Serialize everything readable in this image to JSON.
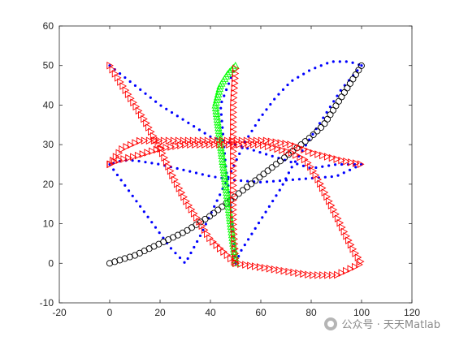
{
  "chart_data": {
    "type": "scatter",
    "title": "",
    "xlabel": "",
    "ylabel": "",
    "xlim": [
      -20,
      120
    ],
    "ylim": [
      -10,
      60
    ],
    "xticks": [
      -20,
      0,
      20,
      40,
      60,
      80,
      100,
      120
    ],
    "yticks": [
      -10,
      0,
      10,
      20,
      30,
      40,
      50,
      60
    ],
    "grid": false,
    "legend": "none",
    "series": [
      {
        "marker": "dot",
        "color": "#0000ff",
        "paths": [
          [
            [
              0,
              50
            ],
            [
              10,
              45
            ],
            [
              20,
              40
            ],
            [
              30,
              36
            ],
            [
              40,
              32
            ],
            [
              50,
              30
            ],
            [
              60,
              28
            ],
            [
              70,
              26
            ],
            [
              80,
              24
            ],
            [
              90,
              25
            ],
            [
              100,
              25
            ]
          ],
          [
            [
              100,
              25
            ],
            [
              90,
              22
            ],
            [
              80,
              21.5
            ],
            [
              70,
              21
            ],
            [
              60,
              20.5
            ],
            [
              50,
              21
            ],
            [
              40,
              22
            ],
            [
              30,
              23.5
            ],
            [
              20,
              25
            ],
            [
              10,
              26
            ],
            [
              5,
              26
            ],
            [
              0,
              25
            ]
          ],
          [
            [
              0,
              25
            ],
            [
              8,
              18
            ],
            [
              16,
              11
            ],
            [
              24,
              4
            ],
            [
              30,
              0
            ],
            [
              36,
              7
            ],
            [
              42,
              15
            ],
            [
              48,
              23
            ],
            [
              54,
              31
            ],
            [
              60,
              37
            ],
            [
              66,
              42
            ],
            [
              72,
              46
            ],
            [
              80,
              49
            ],
            [
              88,
              51
            ],
            [
              95,
              51
            ],
            [
              100,
              50
            ]
          ],
          [
            [
              100,
              50
            ],
            [
              96,
              47
            ],
            [
              92,
              44
            ],
            [
              88,
              40
            ],
            [
              84,
              36
            ],
            [
              80,
              32
            ],
            [
              76,
              28
            ],
            [
              72,
              24
            ],
            [
              68,
              19
            ],
            [
              64,
              15
            ],
            [
              60,
              11
            ],
            [
              56,
              7
            ],
            [
              52,
              3
            ],
            [
              50,
              0
            ]
          ],
          [
            [
              50,
              0
            ],
            [
              48,
              15
            ],
            [
              46,
              25
            ],
            [
              44,
              40
            ],
            [
              50,
              50
            ]
          ]
        ]
      },
      {
        "marker": "circle",
        "color": "#000000",
        "paths": [
          [
            [
              0,
              0
            ],
            [
              10,
              2
            ],
            [
              20,
              5
            ],
            [
              30,
              8
            ],
            [
              40,
              12
            ],
            [
              50,
              17
            ],
            [
              60,
              22
            ],
            [
              70,
              27
            ],
            [
              80,
              32
            ],
            [
              85,
              35
            ],
            [
              90,
              40
            ],
            [
              95,
              45
            ],
            [
              100,
              50
            ]
          ]
        ]
      },
      {
        "marker": "triangle-up",
        "color": "#00ff00",
        "paths": [
          [
            [
              50,
              0
            ],
            [
              48,
              10
            ],
            [
              46,
              20
            ],
            [
              44,
              30
            ],
            [
              42,
              40
            ],
            [
              44,
              45
            ],
            [
              47,
              48
            ],
            [
              50,
              50
            ]
          ]
        ]
      },
      {
        "marker": "triangle-right",
        "color": "#ff0000",
        "paths": [
          [
            [
              0,
              50
            ],
            [
              7,
              43
            ],
            [
              14,
              36
            ],
            [
              20,
              29
            ],
            [
              25,
              22
            ],
            [
              30,
              16
            ],
            [
              35,
              11
            ],
            [
              40,
              6
            ],
            [
              45,
              3
            ],
            [
              50,
              0
            ]
          ],
          [
            [
              50,
              0
            ],
            [
              60,
              -1
            ],
            [
              70,
              -2
            ],
            [
              80,
              -3
            ],
            [
              90,
              -3
            ],
            [
              97,
              -1
            ],
            [
              100,
              0
            ],
            [
              97,
              3
            ],
            [
              93,
              8
            ],
            [
              90,
              12
            ],
            [
              86,
              17
            ],
            [
              82,
              22
            ],
            [
              78,
              26
            ],
            [
              72,
              28
            ],
            [
              60,
              30
            ],
            [
              50,
              30
            ],
            [
              40,
              30
            ],
            [
              30,
              30
            ],
            [
              20,
              29
            ],
            [
              10,
              27
            ],
            [
              3,
              26
            ],
            [
              0,
              25
            ]
          ],
          [
            [
              0,
              25
            ],
            [
              5,
              29
            ],
            [
              12,
              31
            ],
            [
              22,
              31
            ],
            [
              32,
              31
            ],
            [
              42,
              31
            ],
            [
              52,
              31
            ],
            [
              62,
              31
            ],
            [
              72,
              30
            ],
            [
              80,
              28
            ],
            [
              86,
              27
            ],
            [
              92,
              26
            ],
            [
              100,
              25
            ]
          ],
          [
            [
              50,
              0
            ],
            [
              49,
              10
            ],
            [
              49,
              20
            ],
            [
              49,
              30
            ],
            [
              49,
              40
            ],
            [
              50,
              50
            ]
          ]
        ]
      }
    ]
  },
  "watermark": {
    "text": "公众号 · 天天Matlab"
  }
}
